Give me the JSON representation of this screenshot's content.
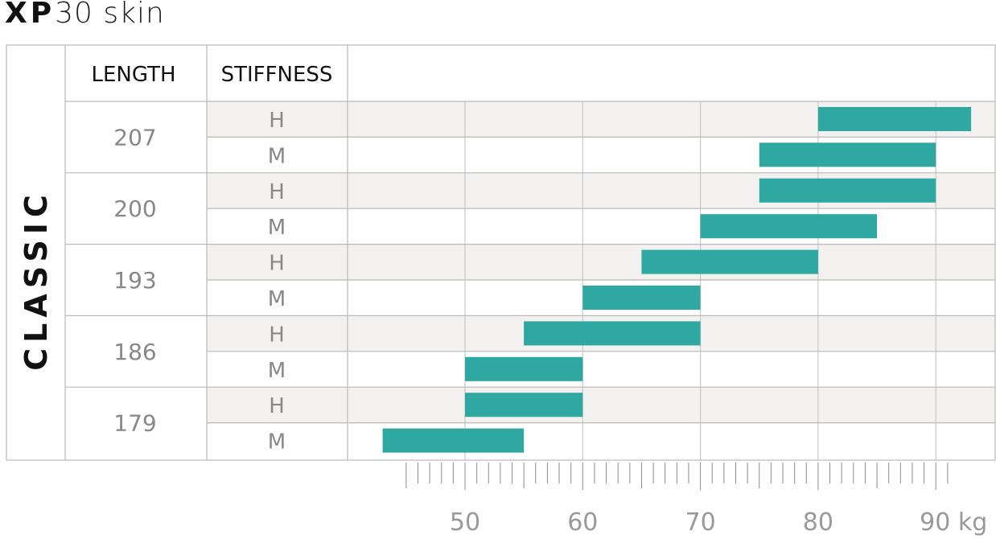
{
  "title": {
    "brand": "XP",
    "model": "30 skin"
  },
  "chart_data": {
    "type": "bar",
    "orientation": "horizontal",
    "category_label": "CLASSIC",
    "headers": {
      "length": "LENGTH",
      "stiffness": "STIFFNESS"
    },
    "rows": [
      {
        "length": "207",
        "stiffness": "H",
        "min": 80,
        "max": 93
      },
      {
        "length": "207",
        "stiffness": "M",
        "min": 75,
        "max": 90
      },
      {
        "length": "200",
        "stiffness": "H",
        "min": 75,
        "max": 90
      },
      {
        "length": "200",
        "stiffness": "M",
        "min": 70,
        "max": 85
      },
      {
        "length": "193",
        "stiffness": "H",
        "min": 65,
        "max": 80
      },
      {
        "length": "193",
        "stiffness": "M",
        "min": 60,
        "max": 70
      },
      {
        "length": "186",
        "stiffness": "H",
        "min": 55,
        "max": 70
      },
      {
        "length": "186",
        "stiffness": "M",
        "min": 50,
        "max": 60
      },
      {
        "length": "179",
        "stiffness": "H",
        "min": 50,
        "max": 60
      },
      {
        "length": "179",
        "stiffness": "M",
        "min": 43,
        "max": 55
      }
    ],
    "x_axis": {
      "ticks": [
        50,
        60,
        70,
        80,
        90
      ],
      "tick_labels": [
        "50",
        "60",
        "70",
        "80",
        "90 kg"
      ],
      "minor_ticks": [
        45,
        91
      ],
      "xlim": [
        40,
        95
      ]
    },
    "colors": {
      "bar": "#2ea8a0",
      "stripe": "#f2f1ef",
      "grid": "#c8c8c8",
      "border": "#b9b9b9"
    },
    "grid": true
  }
}
